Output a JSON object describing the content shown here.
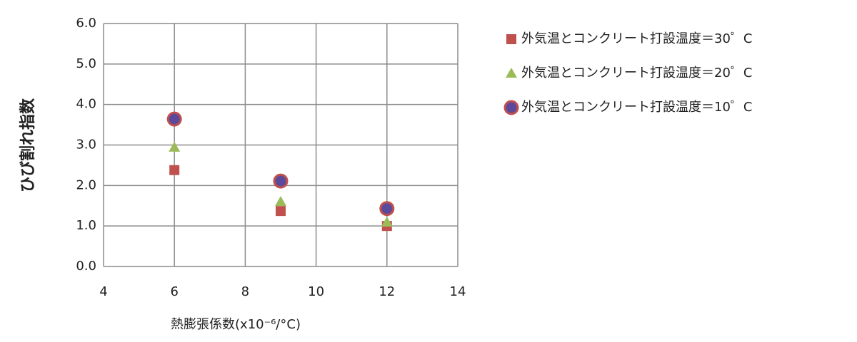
{
  "chart_data": {
    "type": "scatter",
    "xlabel": "熱膨張係数(x10⁻⁶/°C)",
    "ylabel": "ひび割れ指数",
    "xlim": [
      4,
      14
    ],
    "xticks": [
      4,
      6,
      8,
      10,
      12,
      14
    ],
    "ylim": [
      0,
      6
    ],
    "yticks": [
      {
        "value": 0,
        "label": "0.0"
      },
      {
        "value": 1,
        "label": "1.0"
      },
      {
        "value": 2,
        "label": "2.0"
      },
      {
        "value": 3,
        "label": "3.0"
      },
      {
        "value": 4,
        "label": "4.0"
      },
      {
        "value": 5,
        "label": "5.0"
      },
      {
        "value": 6,
        "label": "6.0"
      }
    ],
    "grid": true,
    "legend": "right",
    "series": [
      {
        "name": "外気温とコンクリート打設温度＝30゜C",
        "color": "#c0504d",
        "marker": "square",
        "x": [
          6,
          9,
          12
        ],
        "values": [
          2.38,
          1.37,
          1.0
        ]
      },
      {
        "name": "外気温とコンクリート打設温度＝20゜C",
        "color": "#9bbb59",
        "marker": "triangle",
        "x": [
          6,
          9,
          12
        ],
        "values": [
          2.94,
          1.6,
          1.09
        ]
      },
      {
        "name": "外気温とコンクリート打設温度＝10゜C",
        "color": "#5b4a9b",
        "edgecolor": "#c0504d",
        "marker": "circle",
        "x": [
          6,
          9,
          12
        ],
        "values": [
          3.64,
          2.11,
          1.43
        ]
      }
    ]
  }
}
